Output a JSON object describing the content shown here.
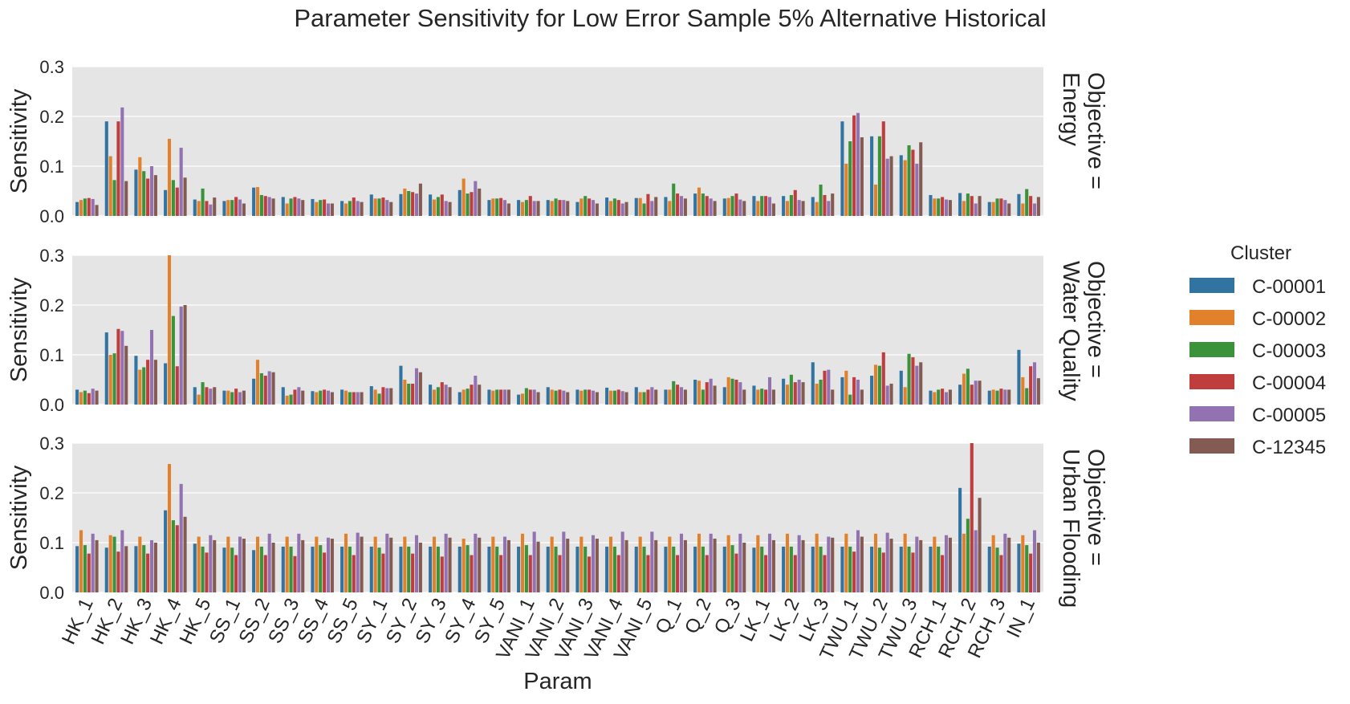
{
  "chart_data": {
    "type": "bar",
    "title": "Parameter Sensitivity for Low Error Sample 5% Alternative Historical",
    "xlabel": "Param",
    "ylabel": "Sensitivity",
    "ylim": [
      0,
      0.3
    ],
    "yticks": [
      "0.0",
      "0.1",
      "0.2",
      "0.3"
    ],
    "grid": true,
    "legend": {
      "title": "Cluster",
      "placement": "right",
      "entries": [
        "C-00001",
        "C-00002",
        "C-00003",
        "C-00004",
        "C-00005",
        "C-12345"
      ],
      "colors": [
        "#3274a1",
        "#e1812c",
        "#3a923a",
        "#c03d3e",
        "#9372b2",
        "#845b53"
      ]
    },
    "categories": [
      "HK_1",
      "HK_2",
      "HK_3",
      "HK_4",
      "HK_5",
      "SS_1",
      "SS_2",
      "SS_3",
      "SS_4",
      "SS_5",
      "SY_1",
      "SY_2",
      "SY_3",
      "SY_4",
      "SY_5",
      "VANI_1",
      "VANI_2",
      "VANI_3",
      "VANI_4",
      "VANI_5",
      "Q_1",
      "Q_2",
      "Q_3",
      "LK_1",
      "LK_2",
      "LK_3",
      "TWU_1",
      "TWU_2",
      "TWU_3",
      "RCH_1",
      "RCH_2",
      "RCH_3",
      "IN_1"
    ],
    "panels": [
      {
        "label": "Objective =\nEnergy",
        "series": [
          {
            "name": "C-00001",
            "values": [
              0.028,
              0.19,
              0.093,
              0.052,
              0.033,
              0.03,
              0.057,
              0.038,
              0.034,
              0.03,
              0.043,
              0.044,
              0.043,
              0.052,
              0.032,
              0.032,
              0.032,
              0.028,
              0.037,
              0.036,
              0.038,
              0.045,
              0.035,
              0.04,
              0.04,
              0.038,
              0.19,
              0.16,
              0.122,
              0.042,
              0.046,
              0.028,
              0.044
            ]
          },
          {
            "name": "C-00002",
            "values": [
              0.032,
              0.12,
              0.118,
              0.155,
              0.03,
              0.032,
              0.058,
              0.025,
              0.028,
              0.025,
              0.035,
              0.055,
              0.033,
              0.075,
              0.035,
              0.028,
              0.03,
              0.035,
              0.03,
              0.036,
              0.03,
              0.057,
              0.036,
              0.03,
              0.03,
              0.028,
              0.105,
              0.063,
              0.112,
              0.035,
              0.03,
              0.028,
              0.025
            ]
          },
          {
            "name": "C-00003",
            "values": [
              0.035,
              0.072,
              0.09,
              0.072,
              0.055,
              0.032,
              0.042,
              0.035,
              0.032,
              0.03,
              0.035,
              0.05,
              0.038,
              0.045,
              0.035,
              0.032,
              0.035,
              0.04,
              0.035,
              0.025,
              0.065,
              0.045,
              0.04,
              0.04,
              0.042,
              0.063,
              0.15,
              0.16,
              0.142,
              0.035,
              0.045,
              0.035,
              0.054
            ]
          },
          {
            "name": "C-00004",
            "values": [
              0.036,
              0.19,
              0.075,
              0.057,
              0.03,
              0.038,
              0.04,
              0.038,
              0.033,
              0.037,
              0.037,
              0.048,
              0.043,
              0.048,
              0.036,
              0.04,
              0.032,
              0.035,
              0.032,
              0.044,
              0.045,
              0.04,
              0.045,
              0.04,
              0.052,
              0.042,
              0.202,
              0.19,
              0.133,
              0.038,
              0.04,
              0.035,
              0.04
            ]
          },
          {
            "name": "C-00005",
            "values": [
              0.034,
              0.218,
              0.1,
              0.137,
              0.023,
              0.033,
              0.038,
              0.035,
              0.025,
              0.03,
              0.032,
              0.045,
              0.03,
              0.07,
              0.032,
              0.03,
              0.032,
              0.032,
              0.025,
              0.03,
              0.04,
              0.035,
              0.033,
              0.038,
              0.032,
              0.03,
              0.207,
              0.115,
              0.105,
              0.033,
              0.025,
              0.032,
              0.025
            ]
          },
          {
            "name": "C-12345",
            "values": [
              0.022,
              0.07,
              0.082,
              0.077,
              0.037,
              0.025,
              0.035,
              0.032,
              0.025,
              0.028,
              0.028,
              0.065,
              0.028,
              0.055,
              0.025,
              0.03,
              0.03,
              0.025,
              0.028,
              0.038,
              0.035,
              0.03,
              0.03,
              0.025,
              0.03,
              0.045,
              0.158,
              0.12,
              0.148,
              0.032,
              0.04,
              0.025,
              0.038
            ]
          }
        ]
      },
      {
        "label": "Objective =\nWater Quality",
        "series": [
          {
            "name": "C-00001",
            "values": [
              0.03,
              0.145,
              0.098,
              0.083,
              0.035,
              0.028,
              0.052,
              0.035,
              0.027,
              0.03,
              0.037,
              0.078,
              0.04,
              0.025,
              0.03,
              0.02,
              0.035,
              0.03,
              0.034,
              0.035,
              0.03,
              0.05,
              0.035,
              0.038,
              0.052,
              0.085,
              0.055,
              0.058,
              0.068,
              0.028,
              0.04,
              0.028,
              0.11
            ]
          },
          {
            "name": "C-00002",
            "values": [
              0.025,
              0.1,
              0.07,
              0.3,
              0.02,
              0.028,
              0.09,
              0.018,
              0.025,
              0.028,
              0.03,
              0.05,
              0.03,
              0.03,
              0.028,
              0.022,
              0.03,
              0.028,
              0.028,
              0.025,
              0.03,
              0.048,
              0.055,
              0.03,
              0.04,
              0.042,
              0.068,
              0.08,
              0.035,
              0.025,
              0.062,
              0.03,
              0.055
            ]
          },
          {
            "name": "C-00003",
            "values": [
              0.028,
              0.103,
              0.075,
              0.178,
              0.045,
              0.025,
              0.063,
              0.02,
              0.028,
              0.025,
              0.022,
              0.042,
              0.035,
              0.032,
              0.03,
              0.033,
              0.028,
              0.03,
              0.028,
              0.025,
              0.047,
              0.03,
              0.052,
              0.032,
              0.06,
              0.05,
              0.02,
              0.078,
              0.102,
              0.03,
              0.072,
              0.028,
              0.033
            ]
          },
          {
            "name": "C-00004",
            "values": [
              0.023,
              0.152,
              0.09,
              0.077,
              0.035,
              0.032,
              0.058,
              0.03,
              0.03,
              0.025,
              0.035,
              0.042,
              0.045,
              0.04,
              0.03,
              0.03,
              0.03,
              0.03,
              0.03,
              0.03,
              0.04,
              0.045,
              0.05,
              0.03,
              0.045,
              0.068,
              0.055,
              0.105,
              0.095,
              0.032,
              0.04,
              0.032,
              0.077
            ]
          },
          {
            "name": "C-00005",
            "values": [
              0.032,
              0.148,
              0.15,
              0.197,
              0.032,
              0.025,
              0.067,
              0.035,
              0.028,
              0.025,
              0.033,
              0.073,
              0.04,
              0.058,
              0.03,
              0.03,
              0.028,
              0.028,
              0.027,
              0.035,
              0.035,
              0.052,
              0.045,
              0.055,
              0.05,
              0.07,
              0.05,
              0.038,
              0.078,
              0.025,
              0.048,
              0.03,
              0.085
            ]
          },
          {
            "name": "C-12345",
            "values": [
              0.028,
              0.118,
              0.09,
              0.2,
              0.035,
              0.028,
              0.065,
              0.028,
              0.025,
              0.025,
              0.033,
              0.065,
              0.035,
              0.04,
              0.03,
              0.025,
              0.025,
              0.025,
              0.025,
              0.03,
              0.03,
              0.038,
              0.03,
              0.03,
              0.045,
              0.03,
              0.03,
              0.042,
              0.085,
              0.03,
              0.048,
              0.03,
              0.053
            ]
          }
        ]
      },
      {
        "label": "Objective =\nUrban Flooding",
        "series": [
          {
            "name": "C-00001",
            "values": [
              0.093,
              0.09,
              0.093,
              0.165,
              0.098,
              0.09,
              0.085,
              0.092,
              0.092,
              0.092,
              0.092,
              0.092,
              0.092,
              0.092,
              0.092,
              0.092,
              0.092,
              0.092,
              0.092,
              0.092,
              0.092,
              0.092,
              0.092,
              0.09,
              0.092,
              0.092,
              0.092,
              0.092,
              0.092,
              0.092,
              0.21,
              0.092,
              0.098
            ]
          },
          {
            "name": "C-00002",
            "values": [
              0.125,
              0.115,
              0.112,
              0.258,
              0.112,
              0.112,
              0.112,
              0.112,
              0.112,
              0.118,
              0.112,
              0.112,
              0.112,
              0.108,
              0.112,
              0.118,
              0.112,
              0.112,
              0.112,
              0.112,
              0.112,
              0.118,
              0.115,
              0.115,
              0.118,
              0.118,
              0.118,
              0.118,
              0.118,
              0.112,
              0.118,
              0.115,
              0.115
            ]
          },
          {
            "name": "C-00003",
            "values": [
              0.095,
              0.112,
              0.095,
              0.145,
              0.092,
              0.09,
              0.092,
              0.092,
              0.095,
              0.092,
              0.09,
              0.092,
              0.092,
              0.095,
              0.092,
              0.095,
              0.092,
              0.092,
              0.092,
              0.092,
              0.092,
              0.092,
              0.095,
              0.092,
              0.092,
              0.092,
              0.092,
              0.09,
              0.092,
              0.092,
              0.148,
              0.09,
              0.095
            ]
          },
          {
            "name": "C-00004",
            "values": [
              0.078,
              0.082,
              0.078,
              0.135,
              0.08,
              0.075,
              0.075,
              0.073,
              0.08,
              0.075,
              0.078,
              0.078,
              0.072,
              0.075,
              0.075,
              0.075,
              0.075,
              0.072,
              0.075,
              0.075,
              0.075,
              0.075,
              0.078,
              0.075,
              0.075,
              0.075,
              0.082,
              0.08,
              0.08,
              0.075,
              0.3,
              0.075,
              0.078
            ]
          },
          {
            "name": "C-00005",
            "values": [
              0.118,
              0.125,
              0.105,
              0.218,
              0.115,
              0.112,
              0.118,
              0.118,
              0.11,
              0.12,
              0.118,
              0.115,
              0.118,
              0.118,
              0.112,
              0.122,
              0.122,
              0.115,
              0.122,
              0.122,
              0.118,
              0.118,
              0.118,
              0.118,
              0.115,
              0.112,
              0.125,
              0.12,
              0.112,
              0.115,
              0.125,
              0.118,
              0.125
            ]
          },
          {
            "name": "C-12345",
            "values": [
              0.105,
              0.093,
              0.1,
              0.152,
              0.105,
              0.108,
              0.1,
              0.105,
              0.108,
              0.112,
              0.11,
              0.1,
              0.11,
              0.11,
              0.105,
              0.102,
              0.108,
              0.108,
              0.105,
              0.105,
              0.105,
              0.108,
              0.1,
              0.105,
              0.105,
              0.11,
              0.112,
              0.108,
              0.105,
              0.11,
              0.19,
              0.11,
              0.1
            ]
          }
        ]
      }
    ]
  }
}
